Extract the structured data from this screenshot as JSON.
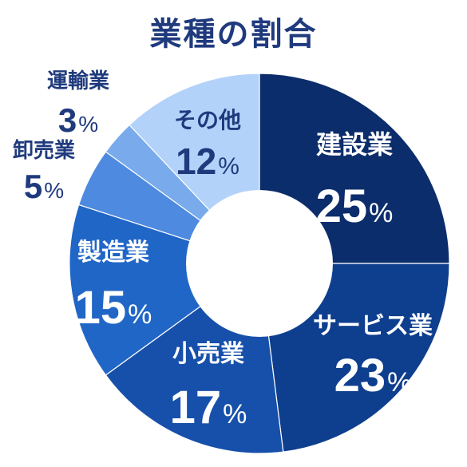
{
  "chart_data": {
    "type": "pie",
    "title": "業種の割合",
    "donut": true,
    "categories": [
      "建設業",
      "サービス業",
      "小売業",
      "製造業",
      "卸売業",
      "運輸業",
      "その他"
    ],
    "values": [
      25,
      23,
      17,
      15,
      5,
      3,
      12
    ],
    "unit": "%",
    "colors": [
      "#0c2d6b",
      "#0e3e8e",
      "#1750aa",
      "#2066c7",
      "#4d8ae0",
      "#79aaec",
      "#b3d2fa"
    ],
    "label_colors": [
      "#ffffff",
      "#ffffff",
      "#ffffff",
      "#ffffff",
      "#1f3a7d",
      "#1f3a7d",
      "#1f3a7d"
    ]
  }
}
